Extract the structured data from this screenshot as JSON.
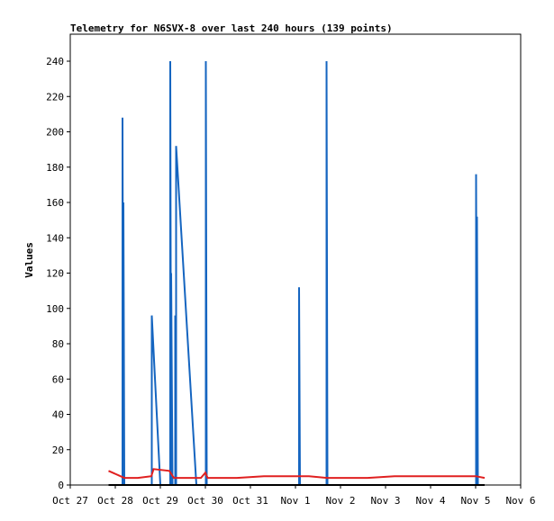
{
  "chart_data": {
    "type": "line",
    "title": "Telemetry for N6SVX-8 over last 240 hours (139 points)",
    "ylabel": "Values",
    "xlabel": "",
    "x_ticks": [
      "Oct 27",
      "Oct 28",
      "Oct 29",
      "Oct 30",
      "Oct 31",
      "Nov 1",
      "Nov 2",
      "Nov 3",
      "Nov 4",
      "Nov 5",
      "Nov 6"
    ],
    "y_ticks": [
      0,
      20,
      40,
      60,
      80,
      100,
      120,
      140,
      160,
      180,
      200,
      220,
      240
    ],
    "xlim_days": [
      0,
      10
    ],
    "ylim": [
      0,
      240
    ],
    "grid": false,
    "colors": {
      "blue": "#1565c0",
      "red": "#e02020",
      "black": "#000000"
    },
    "series": [
      {
        "color": "#1565c0",
        "points": [
          [
            1.16,
            0
          ],
          [
            1.16,
            208
          ],
          [
            1.18,
            0
          ],
          [
            1.18,
            160
          ],
          [
            1.2,
            0
          ],
          [
            1.81,
            0
          ],
          [
            1.81,
            96
          ],
          [
            2.0,
            0
          ],
          [
            2.22,
            0
          ],
          [
            2.22,
            240
          ],
          [
            2.24,
            0
          ],
          [
            2.24,
            120
          ],
          [
            2.27,
            0
          ],
          [
            2.33,
            0
          ],
          [
            2.33,
            96
          ],
          [
            2.35,
            0
          ],
          [
            2.35,
            192
          ],
          [
            2.8,
            0
          ],
          [
            3.01,
            0
          ],
          [
            3.01,
            240
          ],
          [
            3.03,
            0
          ],
          [
            5.08,
            0
          ],
          [
            5.08,
            112
          ],
          [
            5.1,
            0
          ],
          [
            5.69,
            0
          ],
          [
            5.69,
            240
          ],
          [
            5.71,
            0
          ],
          [
            9.01,
            0
          ],
          [
            9.01,
            176
          ],
          [
            9.03,
            0
          ],
          [
            9.03,
            152
          ],
          [
            9.05,
            0
          ]
        ]
      },
      {
        "color": "#e02020",
        "points": [
          [
            0.85,
            8
          ],
          [
            1.2,
            4
          ],
          [
            1.5,
            4
          ],
          [
            1.8,
            5
          ],
          [
            1.85,
            9
          ],
          [
            2.2,
            8
          ],
          [
            2.3,
            4
          ],
          [
            2.9,
            4
          ],
          [
            3.0,
            7
          ],
          [
            3.05,
            4
          ],
          [
            3.7,
            4
          ],
          [
            4.3,
            5
          ],
          [
            5.0,
            5
          ],
          [
            5.3,
            5
          ],
          [
            5.7,
            4
          ],
          [
            6.6,
            4
          ],
          [
            7.2,
            5
          ],
          [
            8.0,
            5
          ],
          [
            8.6,
            5
          ],
          [
            9.0,
            5
          ],
          [
            9.2,
            4
          ]
        ]
      },
      {
        "color": "#000000",
        "points": [
          [
            0.85,
            0
          ],
          [
            9.2,
            0
          ]
        ]
      }
    ]
  }
}
